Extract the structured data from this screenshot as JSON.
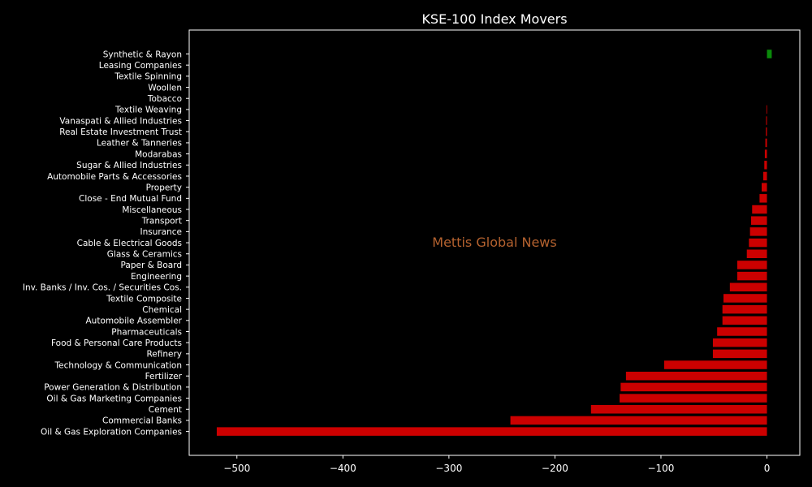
{
  "chart_data": {
    "type": "bar",
    "orientation": "horizontal",
    "title": "KSE-100 Index Movers",
    "watermark": "Mettis Global News",
    "xlabel": "",
    "ylabel": "",
    "xlim": [
      -545,
      31
    ],
    "xticks": [
      -500,
      -400,
      -300,
      -200,
      -100,
      0
    ],
    "xtick_labels": [
      "−500",
      "−400",
      "−300",
      "−200",
      "−100",
      "0"
    ],
    "grid": false,
    "colors": {
      "negative": "#cc0000",
      "positive": "#0a8a0a",
      "background": "#000000",
      "axes": "#ffffff",
      "watermark": "#b5622f"
    },
    "categories": [
      "Synthetic & Rayon",
      "Leasing Companies",
      "Textile Spinning",
      "Woollen",
      "Tobacco",
      "Textile Weaving",
      "Vanaspati & Allied Industries",
      "Real Estate Investment Trust",
      "Leather & Tanneries",
      "Modarabas",
      "Sugar & Allied Industries",
      "Automobile Parts & Accessories",
      "Property",
      "Close - End Mutual Fund",
      "Miscellaneous",
      "Transport",
      "Insurance",
      "Cable & Electrical Goods",
      "Glass & Ceramics",
      "Paper & Board",
      "Engineering",
      "Inv. Banks / Inv. Cos. / Securities Cos.",
      "Textile Composite",
      "Chemical",
      "Automobile Assembler",
      "Pharmaceuticals",
      "Food & Personal Care Products",
      "Refinery",
      "Technology & Communication",
      "Fertilizer",
      "Power Generation & Distribution",
      "Oil & Gas Marketing Companies",
      "Cement",
      "Commercial Banks",
      "Oil & Gas Exploration Companies"
    ],
    "values": [
      4.5,
      0,
      0,
      0,
      0,
      -0.5,
      -0.8,
      -1,
      -1.5,
      -2,
      -2.5,
      -3.5,
      -5,
      -7,
      -14,
      -15,
      -16,
      -17,
      -19,
      -28,
      -28,
      -35,
      -41,
      -42,
      -42,
      -47,
      -51,
      -51,
      -97,
      -133,
      -138,
      -139,
      -166,
      -242,
      -519
    ]
  }
}
